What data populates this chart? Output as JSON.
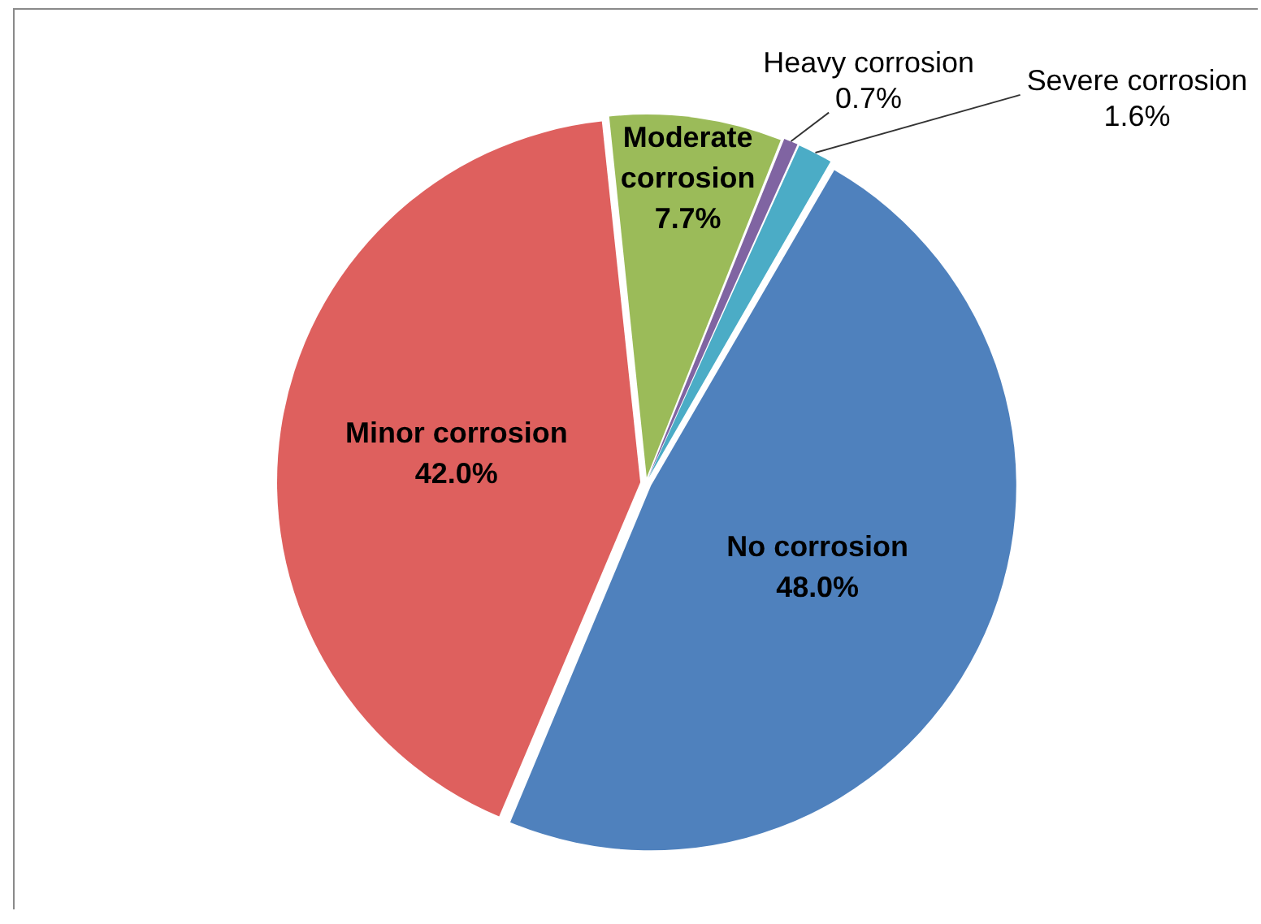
{
  "chart_data": {
    "type": "pie",
    "categories": [
      "No corrosion",
      "Minor corrosion",
      "Moderate corrosion",
      "Heavy corrosion",
      "Severe corrosion"
    ],
    "values": [
      48.0,
      42.0,
      7.7,
      0.7,
      1.6
    ],
    "colors": [
      "#4f81bd",
      "#de605e",
      "#9bbb59",
      "#8064a2",
      "#4bacc6"
    ],
    "value_labels": [
      "48.0%",
      "42.0%",
      "7.7%",
      "0.7%",
      "1.6%"
    ]
  }
}
